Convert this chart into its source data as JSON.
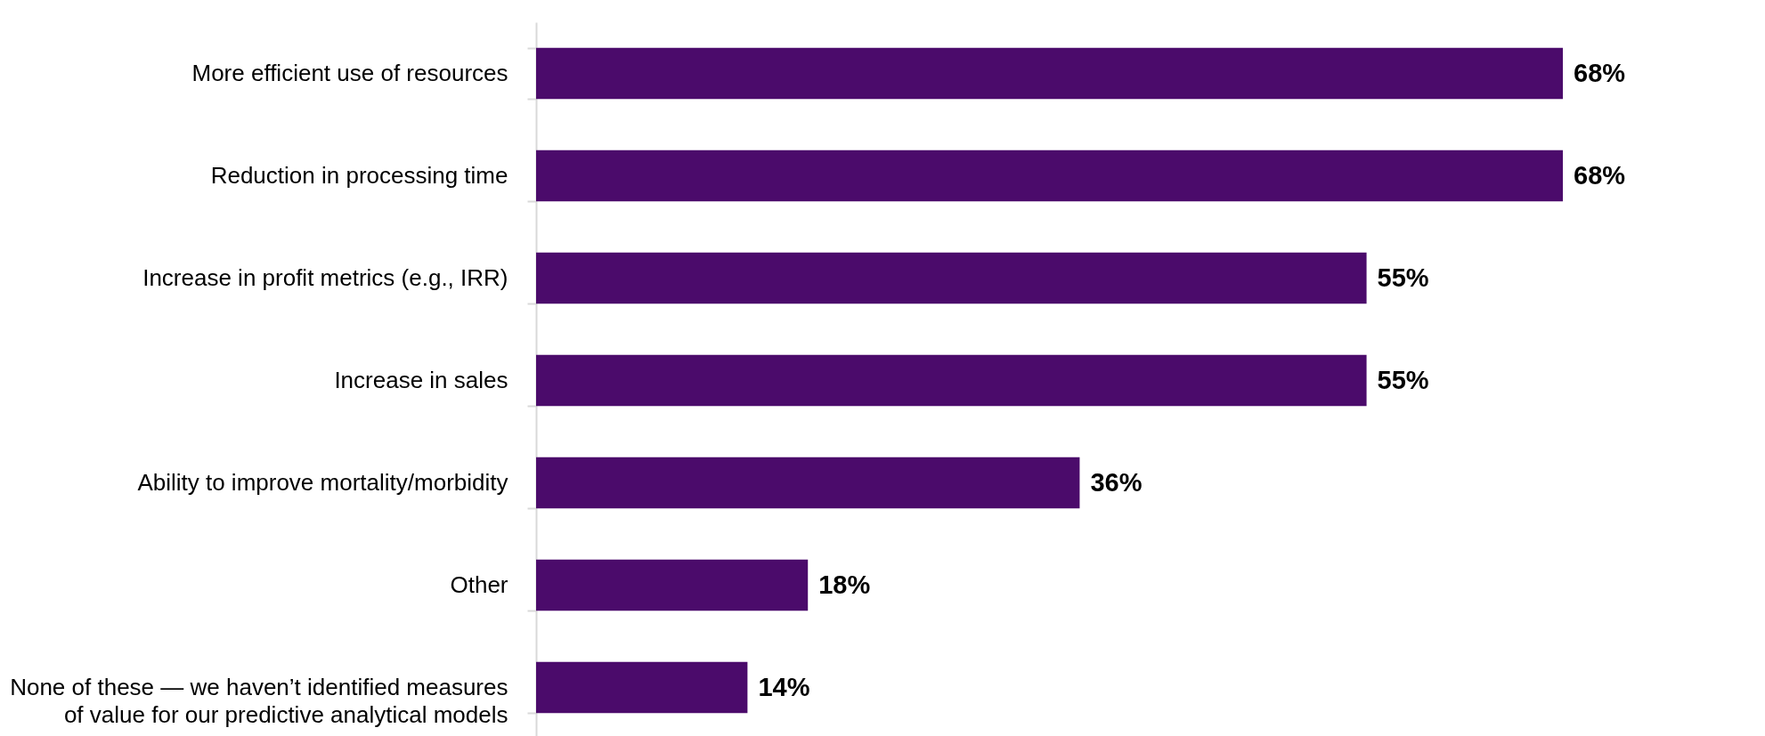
{
  "chart_data": {
    "type": "bar",
    "orientation": "horizontal",
    "categories": [
      "More efficient use of resources",
      "Reduction in processing time",
      "Increase in profit metrics (e.g., IRR)",
      "Increase in sales",
      "Ability to improve mortality/morbidity",
      "Other",
      "None of these — we haven’t identified measures of value for our predictive analytical models"
    ],
    "values": [
      68,
      68,
      55,
      55,
      36,
      18,
      14
    ],
    "value_labels": [
      "68%",
      "68%",
      "55%",
      "55%",
      "36%",
      "18%",
      "14%"
    ],
    "color": "#4b0b6b"
  }
}
